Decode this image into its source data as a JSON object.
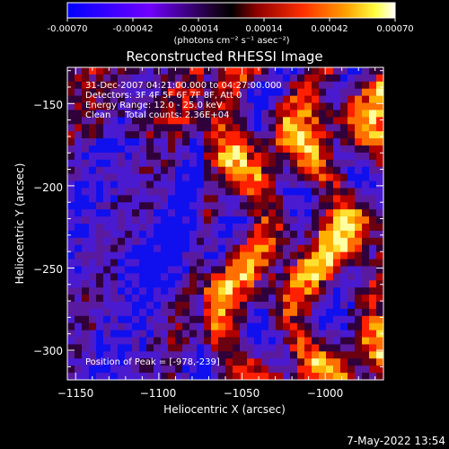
{
  "colorbar": {
    "ticks": [
      "-0.00070",
      "-0.00042",
      "-0.00014",
      "0.00014",
      "0.00042",
      "0.00070"
    ],
    "unit_label": "(photons cm⁻² s⁻¹ asec⁻²)",
    "range": [
      -0.0007,
      0.0007
    ]
  },
  "title": "Reconstructed RHESSI Image",
  "info": {
    "line1": "31-Dec-2007 04:21:00.000 to 04:27:00.000",
    "line2": "Detectors: 3F 4F 5F 6F 7F 8F, Att 0",
    "line3": "Energy Range: 12.0 - 25.0 keV",
    "line4": "Clean     Total counts: 2.36E+04",
    "peak": "Position of Peak = [-978,-239]"
  },
  "footer": {
    "timestamp": "7-May-2022 13:54"
  },
  "chart_data": {
    "type": "heatmap",
    "title": "Reconstructed RHESSI Image",
    "xlabel": "Heliocentric X (arcsec)",
    "ylabel": "Heliocentric Y (arcsec)",
    "xlim": [
      -1155,
      -965
    ],
    "ylim": [
      -318,
      -128
    ],
    "x_ticks": [
      -1150,
      -1100,
      -1050,
      -1000
    ],
    "y_ticks": [
      -150,
      -200,
      -250,
      -300
    ],
    "x_tick_labels": [
      "−1150",
      "−1100",
      "−1050",
      "−1000"
    ],
    "y_tick_labels": [
      "−150",
      "−200",
      "−250",
      "−300"
    ],
    "colormap": [
      "#0000ff",
      "#7a00ff",
      "#3c0050",
      "#000000",
      "#9a0000",
      "#ff2800",
      "#ff9000",
      "#ffff40",
      "#ffffff"
    ],
    "peak_position": [
      -978,
      -239
    ],
    "grid": false
  }
}
